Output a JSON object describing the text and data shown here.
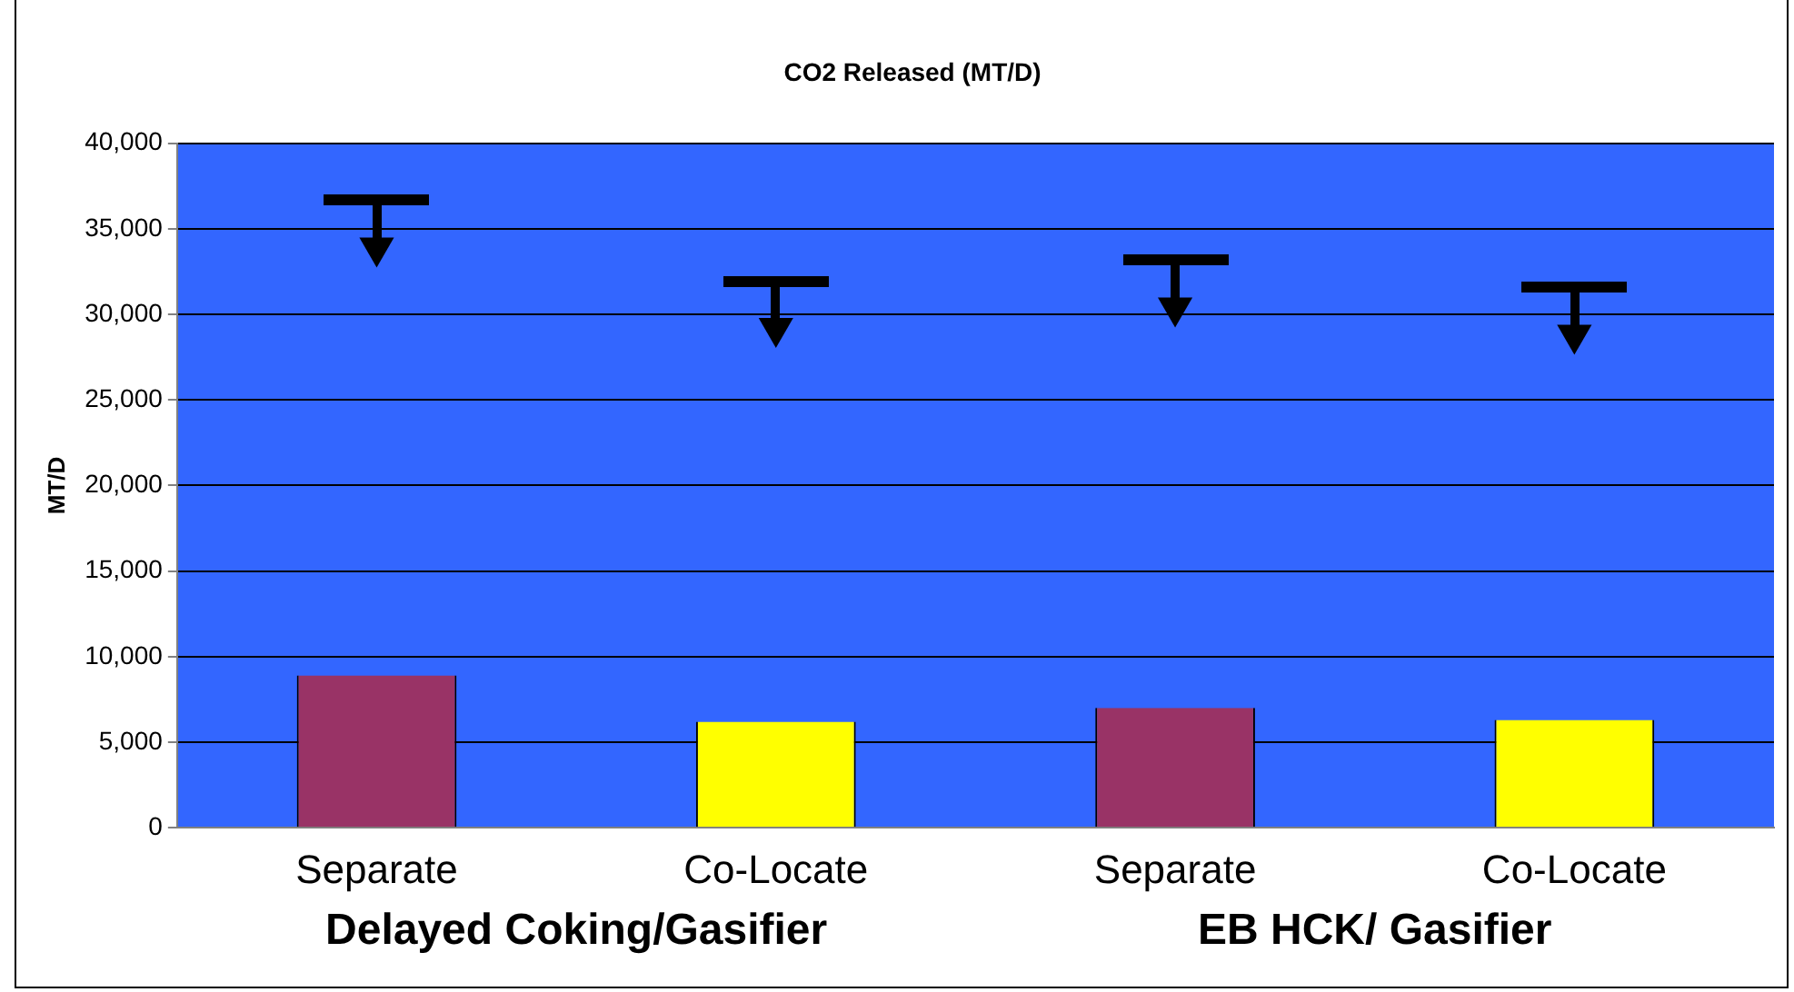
{
  "chart_data": {
    "type": "bar",
    "title": "CO2 Released (MT/D)",
    "ylabel": "MT/D",
    "categories": [
      "Separate",
      "Co-Locate",
      "Separate",
      "Co-Locate"
    ],
    "series": [
      {
        "colors": [
          "#993366",
          "#ffff00",
          "#993366",
          "#ffff00"
        ],
        "values": [
          8900,
          6200,
          7000,
          6300
        ]
      },
      {
        "type": "scatter",
        "color": "#000000",
        "marker": "triangle",
        "values": [
          33900,
          29200,
          30400,
          28800
        ]
      }
    ],
    "ylim": [
      0,
      40000
    ],
    "yticks": [
      {
        "value": 0,
        "label": "0"
      },
      {
        "value": 5000,
        "label": "5,000"
      },
      {
        "value": 10000,
        "label": "10,000"
      },
      {
        "value": 15000,
        "label": "15,000"
      },
      {
        "value": 20000,
        "label": "20,000"
      },
      {
        "value": 25000,
        "label": "25,000"
      },
      {
        "value": 30000,
        "label": "30,000"
      },
      {
        "value": 35000,
        "label": "35,000"
      },
      {
        "value": 40000,
        "label": "40,000"
      }
    ],
    "grid": "y",
    "legend": false,
    "annotations": [
      "Delayed Coking/Gasifier",
      "EB HCK/ Gasifier"
    ]
  }
}
